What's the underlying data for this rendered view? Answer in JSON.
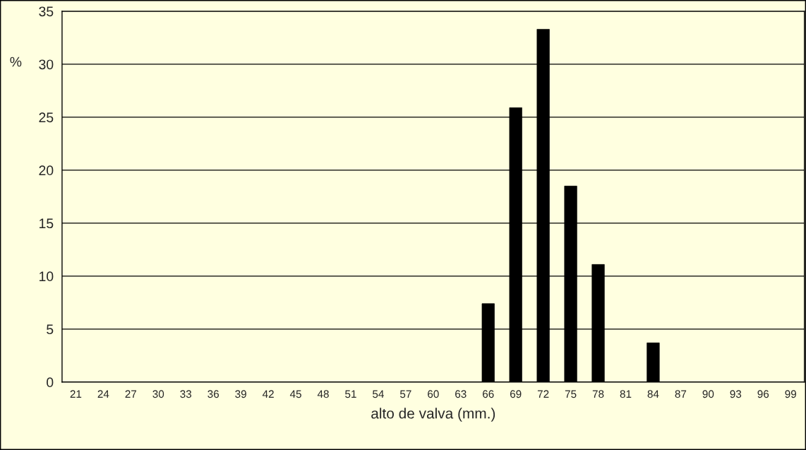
{
  "chart_data": {
    "type": "bar",
    "xlabel": "alto de valva (mm.)",
    "ylabel": "%",
    "categories": [
      "21",
      "24",
      "27",
      "30",
      "33",
      "36",
      "39",
      "42",
      "45",
      "48",
      "51",
      "54",
      "57",
      "60",
      "63",
      "66",
      "69",
      "72",
      "75",
      "78",
      "81",
      "84",
      "87",
      "90",
      "93",
      "96",
      "99"
    ],
    "values": [
      0,
      0,
      0,
      0,
      0,
      0,
      0,
      0,
      0,
      0,
      0,
      0,
      0,
      0,
      0,
      7.4,
      25.9,
      33.3,
      18.5,
      11.1,
      0,
      3.7,
      0,
      0,
      0,
      0,
      0
    ],
    "color": "#000000",
    "ylim": [
      0,
      35
    ],
    "yticks": [
      0,
      5,
      10,
      15,
      20,
      25,
      30,
      35
    ],
    "grid": "y"
  }
}
